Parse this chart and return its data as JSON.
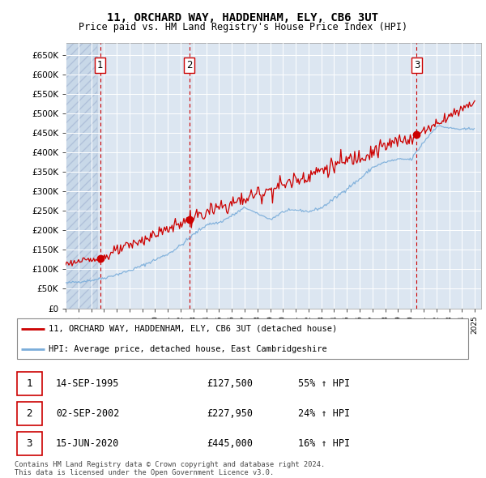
{
  "title": "11, ORCHARD WAY, HADDENHAM, ELY, CB6 3UT",
  "subtitle": "Price paid vs. HM Land Registry's House Price Index (HPI)",
  "ylim": [
    0,
    680000
  ],
  "yticks": [
    0,
    50000,
    100000,
    150000,
    200000,
    250000,
    300000,
    350000,
    400000,
    450000,
    500000,
    550000,
    600000,
    650000
  ],
  "xlim_start": 1993.0,
  "xlim_end": 2025.5,
  "background_plot": "#dce6f1",
  "background_hatch": "#c8d8e8",
  "sale_color": "#cc0000",
  "hpi_color": "#7aadda",
  "sales": [
    {
      "date_num": 1995.706,
      "price": 127500,
      "label": "1"
    },
    {
      "date_num": 2002.669,
      "price": 227950,
      "label": "2"
    },
    {
      "date_num": 2020.455,
      "price": 445000,
      "label": "3"
    }
  ],
  "legend_sale_label": "11, ORCHARD WAY, HADDENHAM, ELY, CB6 3UT (detached house)",
  "legend_hpi_label": "HPI: Average price, detached house, East Cambridgeshire",
  "table_data": [
    {
      "num": "1",
      "date": "14-SEP-1995",
      "price": "£127,500",
      "change": "55% ↑ HPI"
    },
    {
      "num": "2",
      "date": "02-SEP-2002",
      "price": "£227,950",
      "change": "24% ↑ HPI"
    },
    {
      "num": "3",
      "date": "15-JUN-2020",
      "price": "£445,000",
      "change": "16% ↑ HPI"
    }
  ],
  "footer": "Contains HM Land Registry data © Crown copyright and database right 2024.\nThis data is licensed under the Open Government Licence v3.0.",
  "xtick_years": [
    1993,
    1994,
    1995,
    1996,
    1997,
    1998,
    1999,
    2000,
    2001,
    2002,
    2003,
    2004,
    2005,
    2006,
    2007,
    2008,
    2009,
    2010,
    2011,
    2012,
    2013,
    2014,
    2015,
    2016,
    2017,
    2018,
    2019,
    2020,
    2021,
    2022,
    2023,
    2024,
    2025
  ]
}
